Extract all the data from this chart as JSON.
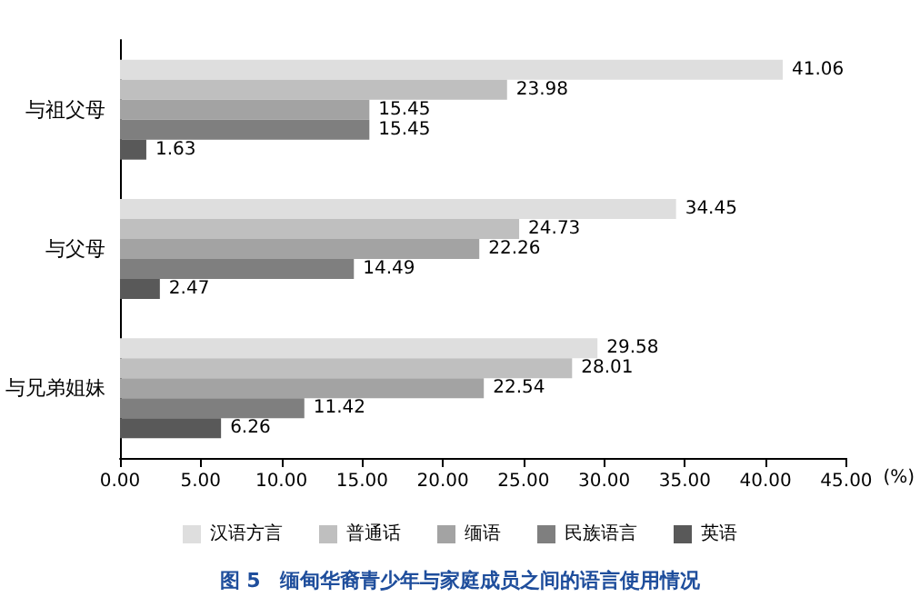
{
  "chart_data": {
    "type": "bar",
    "orientation": "horizontal",
    "title": "图 5　缅甸华裔青少年与家庭成员之间的语言使用情况",
    "xlabel": "(%)",
    "categories": [
      "与祖父母",
      "与父母",
      "与兄弟姐妹"
    ],
    "series": [
      {
        "name": "汉语方言",
        "color": "#dedede",
        "values": [
          41.06,
          34.45,
          29.58
        ]
      },
      {
        "name": "普通话",
        "color": "#bfbfbf",
        "values": [
          23.98,
          24.73,
          28.01
        ]
      },
      {
        "name": "缅语",
        "color": "#a3a3a3",
        "values": [
          15.45,
          22.26,
          22.54
        ]
      },
      {
        "name": "民族语言",
        "color": "#7f7f7f",
        "values": [
          15.45,
          14.49,
          11.42
        ]
      },
      {
        "name": "英语",
        "color": "#595959",
        "values": [
          1.63,
          2.47,
          6.26
        ]
      }
    ],
    "xlim": [
      0,
      45
    ],
    "xticks": [
      {
        "value": 0,
        "label": "0.00"
      },
      {
        "value": 5,
        "label": "5.00"
      },
      {
        "value": 10,
        "label": "10.00"
      },
      {
        "value": 15,
        "label": "15.00"
      },
      {
        "value": 20,
        "label": "20.00"
      },
      {
        "value": 25,
        "label": "25.00"
      },
      {
        "value": 30,
        "label": "30.00"
      },
      {
        "value": 35,
        "label": "35.00"
      },
      {
        "value": 40,
        "label": "40.00"
      },
      {
        "value": 45,
        "label": "45.00"
      }
    ],
    "data_labels": true,
    "grid": false,
    "legend": "bottom"
  }
}
